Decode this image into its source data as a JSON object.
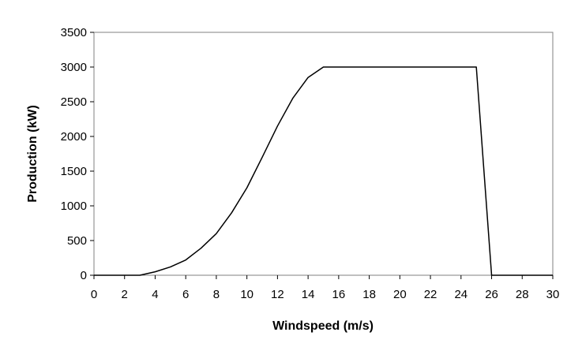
{
  "chart_data": {
    "type": "line",
    "title": "",
    "xlabel": "Windspeed (m/s)",
    "ylabel": "Production (kW)",
    "xlim": [
      0,
      30
    ],
    "ylim": [
      0,
      3500
    ],
    "x_ticks": [
      0,
      2,
      4,
      6,
      8,
      10,
      12,
      14,
      16,
      18,
      20,
      22,
      24,
      26,
      28,
      30
    ],
    "y_ticks": [
      0,
      500,
      1000,
      1500,
      2000,
      2500,
      3000,
      3500
    ],
    "grid": false,
    "legend": "none",
    "series": [
      {
        "color": "#000000",
        "x": [
          0,
          1,
          2,
          3,
          4,
          5,
          6,
          7,
          8,
          9,
          10,
          11,
          12,
          13,
          14,
          15,
          16,
          17,
          18,
          19,
          20,
          21,
          22,
          23,
          24,
          25,
          26,
          27,
          28,
          29,
          30
        ],
        "y": [
          0,
          0,
          0,
          0,
          50,
          120,
          220,
          390,
          600,
          900,
          1260,
          1700,
          2150,
          2550,
          2850,
          3000,
          3000,
          3000,
          3000,
          3000,
          3000,
          3000,
          3000,
          3000,
          3000,
          3000,
          0,
          0,
          0,
          0,
          0
        ]
      }
    ]
  }
}
